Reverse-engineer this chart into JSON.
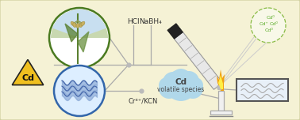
{
  "bg_color": "#f5f2d5",
  "triangle_color": "#f0c020",
  "triangle_outline": "#222222",
  "cd_label": "Cd",
  "rice_circle_bg": "#ffffff",
  "rice_circle_outline": "#4a7a20",
  "rice_fill": "#e8f0e0",
  "water_circle_bg": "#ddeeff",
  "water_circle_outline": "#3366aa",
  "wave_color1": "#7799cc",
  "wave_color2": "#aabbdd",
  "hcl_label": "HCl",
  "nabh4_label": "NaBH₄",
  "crkcn_label": "Cr³⁺/KCN",
  "cloud_color": "#b0d8ea",
  "cloud_text_line1": "Cd",
  "cloud_text_line2": "volatile species",
  "cloud_text_color": "#444444",
  "species_color": "#55aa22",
  "flame_orange": "#f0a010",
  "flame_yellow": "#ffee44",
  "line_color": "#aaaaaa",
  "dot_color": "#bbbbbb",
  "tube_body_color": "#e8e8e8",
  "tube_stripe_color": "#aaaaaa",
  "tube_cap_color": "#222222",
  "detector_face": "#e8f0f8",
  "detector_outline": "#888888",
  "burner_color": "#f0f0f0",
  "burner_outline": "#aaaaaa",
  "bubble_edge": "#88bb44",
  "bubble_face": "#f8f8e8"
}
